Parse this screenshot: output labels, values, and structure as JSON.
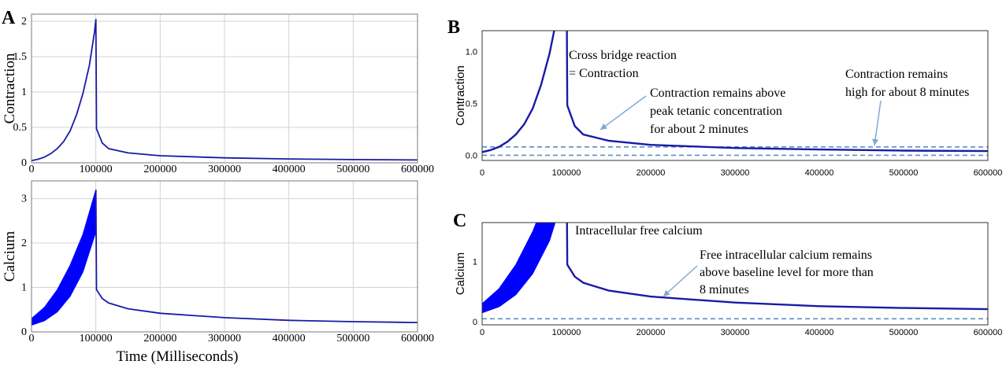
{
  "panels": {
    "A": "A",
    "B": "B",
    "C": "C"
  },
  "colors": {
    "line": "#1a1aa8",
    "band": "#0000ff",
    "threshold": "#5b8fc9",
    "arrow": "#7fa9d6"
  },
  "chart_data": [
    {
      "id": "A-top",
      "type": "line",
      "ylabel": "Contraction",
      "xlabel": "",
      "xlim": [
        0,
        600000
      ],
      "ylim": [
        0,
        2.1
      ],
      "xticks": [
        0,
        100000,
        200000,
        300000,
        400000,
        500000,
        600000
      ],
      "xtick_labels": [
        "0",
        "100000",
        "200000",
        "300000",
        "400000",
        "500000",
        "600000"
      ],
      "yticks": [
        0,
        0.5,
        1,
        1.5,
        2
      ],
      "ytick_labels": [
        "0",
        "0.5",
        "1",
        "1.5",
        "2"
      ],
      "grid": true,
      "peak": {
        "x": 100000,
        "y": 2.03
      },
      "x": [
        0,
        10000,
        20000,
        30000,
        40000,
        50000,
        60000,
        70000,
        80000,
        90000,
        98000,
        100000,
        101000,
        110000,
        120000,
        150000,
        200000,
        300000,
        400000,
        500000,
        600000
      ],
      "y": [
        0.03,
        0.05,
        0.08,
        0.13,
        0.2,
        0.3,
        0.45,
        0.68,
        0.98,
        1.38,
        1.85,
        2.03,
        0.48,
        0.28,
        0.2,
        0.14,
        0.1,
        0.07,
        0.055,
        0.045,
        0.04
      ]
    },
    {
      "id": "A-bottom",
      "type": "area",
      "ylabel": "Calcium",
      "xlabel": "Time (Milliseconds)",
      "xlim": [
        0,
        600000
      ],
      "ylim": [
        0,
        3.4
      ],
      "xticks": [
        0,
        100000,
        200000,
        300000,
        400000,
        500000,
        600000
      ],
      "xtick_labels": [
        "0",
        "100000",
        "200000",
        "300000",
        "400000",
        "500000",
        "600000"
      ],
      "yticks": [
        0,
        1,
        2,
        3
      ],
      "ytick_labels": [
        "0",
        "1",
        "2",
        "3"
      ],
      "grid": true,
      "band_x": [
        0,
        20000,
        40000,
        60000,
        80000,
        100000
      ],
      "band_upper": [
        0.3,
        0.55,
        0.95,
        1.5,
        2.2,
        3.2
      ],
      "band_lower": [
        0.15,
        0.25,
        0.45,
        0.8,
        1.35,
        2.25
      ],
      "x": [
        100000,
        101000,
        110000,
        120000,
        150000,
        200000,
        300000,
        400000,
        500000,
        600000
      ],
      "y": [
        3.2,
        0.95,
        0.75,
        0.65,
        0.52,
        0.42,
        0.32,
        0.26,
        0.23,
        0.21
      ]
    },
    {
      "id": "B",
      "type": "line",
      "ylabel": "Contraction",
      "xlabel": "",
      "xlim": [
        0,
        600000
      ],
      "ylim": [
        -0.05,
        1.2
      ],
      "xticks": [
        0,
        100000,
        200000,
        300000,
        400000,
        500000,
        600000
      ],
      "xtick_labels": [
        "0",
        "100000",
        "200000",
        "300000",
        "400000",
        "500000",
        "600000"
      ],
      "yticks": [
        0.0,
        0.5,
        1.0
      ],
      "ytick_labels": [
        "0.0",
        "0.5",
        "1.0"
      ],
      "grid": false,
      "thresholds": [
        0.08,
        0.0
      ],
      "x": [
        0,
        10000,
        20000,
        30000,
        40000,
        50000,
        60000,
        70000,
        80000,
        90000,
        100000,
        101000,
        110000,
        120000,
        150000,
        200000,
        300000,
        400000,
        500000,
        600000
      ],
      "y": [
        0.03,
        0.05,
        0.08,
        0.13,
        0.2,
        0.3,
        0.45,
        0.68,
        0.98,
        1.38,
        2.03,
        0.48,
        0.28,
        0.2,
        0.14,
        0.1,
        0.07,
        0.055,
        0.045,
        0.04
      ],
      "annotations": {
        "peak_label_1": "Cross bridge reaction",
        "peak_label_2": "= Contraction",
        "mid_1": "Contraction remains above",
        "mid_2": "peak tetanic concentration",
        "mid_3": "for about 2 minutes",
        "right_1": "Contraction remains",
        "right_2": "high  for about 8 minutes"
      }
    },
    {
      "id": "C",
      "type": "area",
      "ylabel": "Calcium",
      "xlabel": "",
      "xlim": [
        0,
        600000
      ],
      "ylim": [
        -0.05,
        1.65
      ],
      "xticks": [
        0,
        100000,
        200000,
        300000,
        400000,
        500000,
        600000
      ],
      "xtick_labels": [
        "0",
        "100000",
        "200000",
        "300000",
        "400000",
        "500000",
        "600000"
      ],
      "yticks": [
        0,
        1
      ],
      "ytick_labels": [
        "0",
        "1"
      ],
      "grid": false,
      "thresholds": [
        0.05
      ],
      "band_x": [
        0,
        20000,
        40000,
        60000,
        80000,
        100000
      ],
      "band_upper": [
        0.3,
        0.55,
        0.95,
        1.5,
        2.2,
        3.2
      ],
      "band_lower": [
        0.15,
        0.25,
        0.45,
        0.8,
        1.35,
        2.25
      ],
      "x": [
        100000,
        101000,
        110000,
        120000,
        150000,
        200000,
        300000,
        400000,
        500000,
        600000
      ],
      "y": [
        3.2,
        0.95,
        0.75,
        0.65,
        0.52,
        0.42,
        0.32,
        0.26,
        0.23,
        0.21
      ],
      "annotations": {
        "peak_label": "Intracellular  free calcium",
        "right_1": "Free intracellular  calcium remains",
        "right_2": "above baseline level  for more than",
        "right_3": "8 minutes"
      }
    }
  ]
}
